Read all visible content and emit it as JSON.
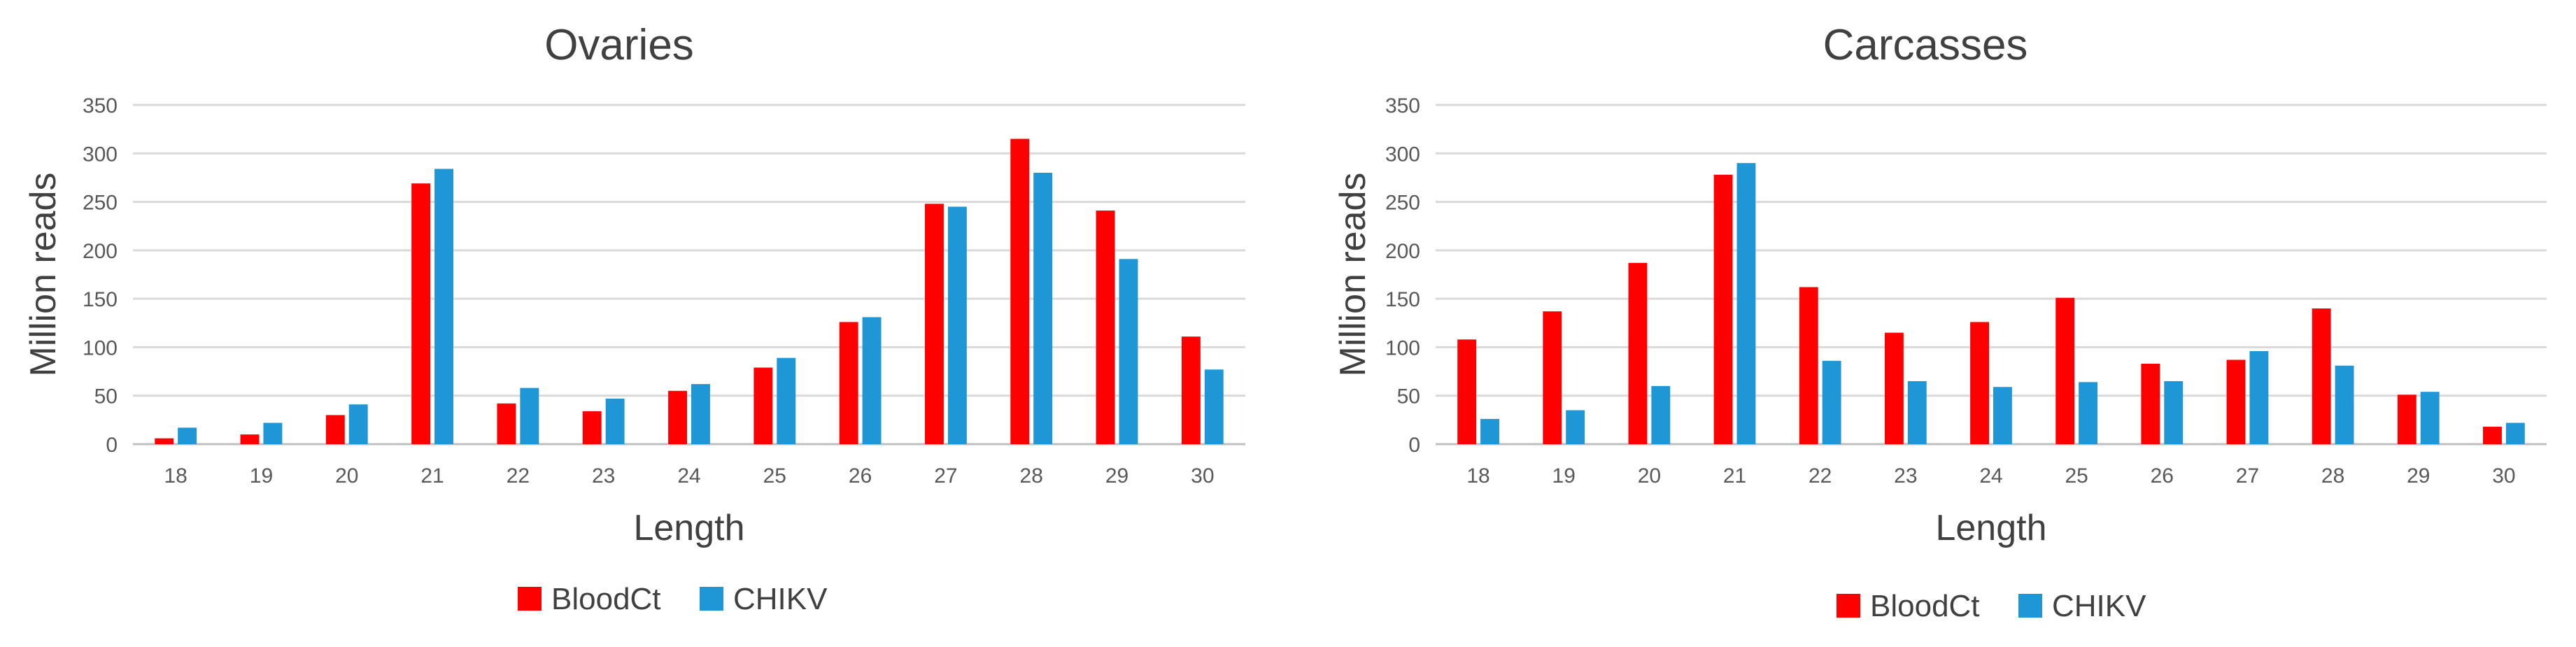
{
  "colors": {
    "BloodCt": "#ff0000",
    "CHIKV": "#1f96d6"
  },
  "chart_data": [
    {
      "type": "bar",
      "title": "Ovaries",
      "xlabel": "Length",
      "ylabel": "Million reads",
      "ylim": [
        0,
        350
      ],
      "yticks": [
        0,
        50,
        100,
        150,
        200,
        250,
        300,
        350
      ],
      "grid": true,
      "legend": "bottom",
      "categories": [
        "18",
        "19",
        "20",
        "21",
        "22",
        "23",
        "24",
        "25",
        "26",
        "27",
        "28",
        "29",
        "30"
      ],
      "series": [
        {
          "name": "BloodCt",
          "color": "#ff0000",
          "values": [
            6,
            10,
            30,
            269,
            42,
            34,
            55,
            79,
            126,
            248,
            315,
            241,
            111
          ]
        },
        {
          "name": "CHIKV",
          "color": "#1f96d6",
          "values": [
            17,
            22,
            41,
            284,
            58,
            47,
            62,
            89,
            131,
            245,
            280,
            191,
            77
          ]
        }
      ]
    },
    {
      "type": "bar",
      "title": "Carcasses",
      "xlabel": "Length",
      "ylabel": "Million reads",
      "ylim": [
        0,
        350
      ],
      "yticks": [
        0,
        50,
        100,
        150,
        200,
        250,
        300,
        350
      ],
      "grid": true,
      "legend": "bottom",
      "categories": [
        "18",
        "19",
        "20",
        "21",
        "22",
        "23",
        "24",
        "25",
        "26",
        "27",
        "28",
        "29",
        "30"
      ],
      "series": [
        {
          "name": "BloodCt",
          "color": "#ff0000",
          "values": [
            108,
            137,
            187,
            278,
            162,
            115,
            126,
            151,
            83,
            87,
            140,
            51,
            18
          ]
        },
        {
          "name": "CHIKV",
          "color": "#1f96d6",
          "values": [
            26,
            35,
            60,
            290,
            86,
            65,
            59,
            64,
            65,
            96,
            81,
            54,
            22
          ]
        }
      ]
    }
  ]
}
